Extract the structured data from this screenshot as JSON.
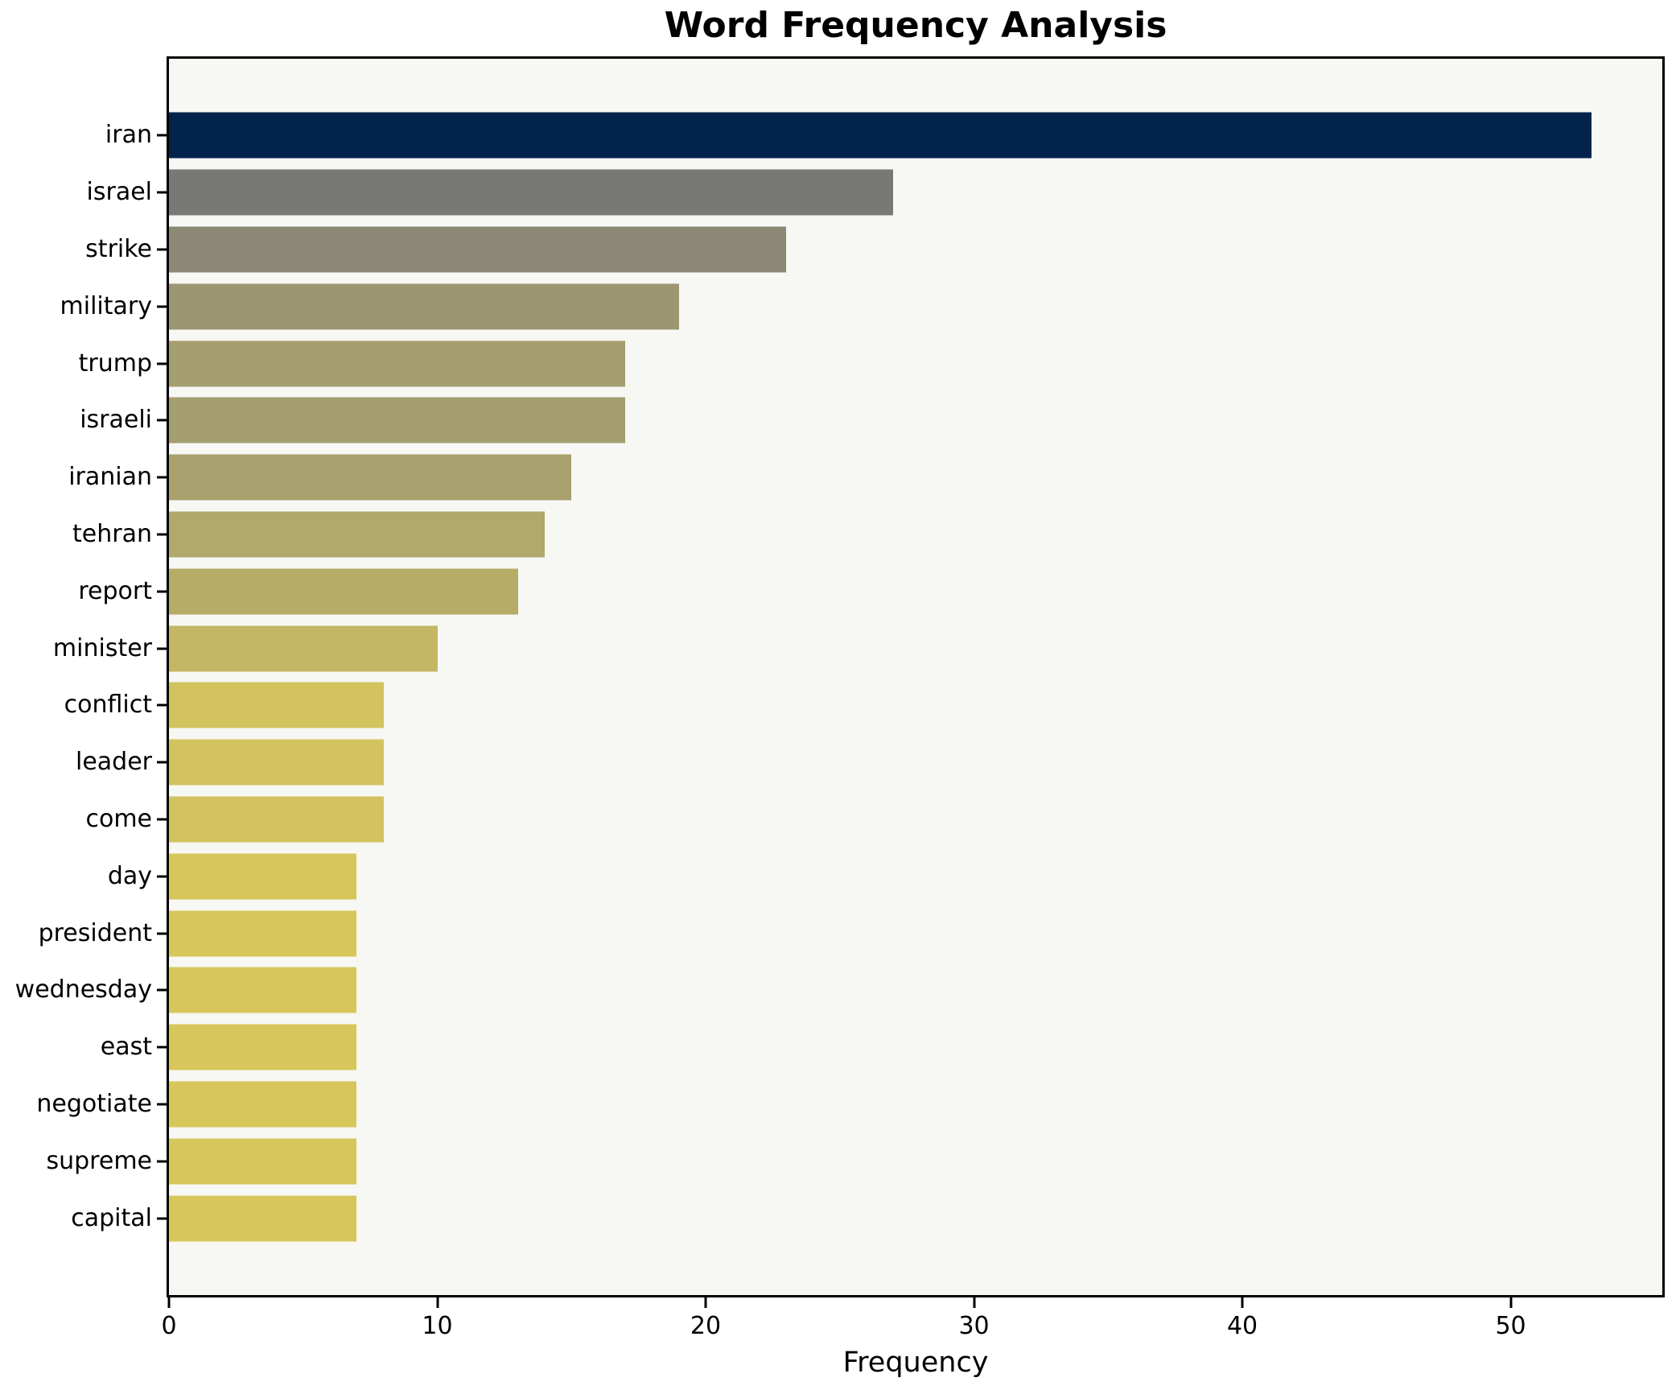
{
  "chart_data": {
    "type": "bar",
    "orientation": "horizontal",
    "title": "Word Frequency Analysis",
    "xlabel": "Frequency",
    "ylabel": "",
    "categories": [
      "iran",
      "israel",
      "strike",
      "military",
      "trump",
      "israeli",
      "iranian",
      "tehran",
      "report",
      "minister",
      "conflict",
      "leader",
      "come",
      "day",
      "president",
      "wednesday",
      "east",
      "negotiate",
      "supreme",
      "capital"
    ],
    "values": [
      53,
      27,
      23,
      19,
      17,
      17,
      15,
      14,
      13,
      10,
      8,
      8,
      8,
      7,
      7,
      7,
      7,
      7,
      7,
      7
    ],
    "bar_colors": [
      "#02234c",
      "#787876",
      "#8b8876",
      "#9c9673",
      "#a59e71",
      "#a59e71",
      "#a9a16d",
      "#b0a86c",
      "#b6ac68",
      "#c3b763",
      "#d2c35e",
      "#d2c35e",
      "#d2c35e",
      "#d7c75b",
      "#d7c75b",
      "#d7c75b",
      "#d7c75b",
      "#d7c75b",
      "#d7c75b",
      "#d7c75b"
    ],
    "xticks": [
      0,
      10,
      20,
      30,
      40,
      50
    ],
    "xlim": [
      0,
      55.65
    ],
    "grid": false,
    "legend_position": "none",
    "plot_bg": "#f7f7f4",
    "figure_bg": "#ffffff",
    "axis_color": "#000000"
  }
}
